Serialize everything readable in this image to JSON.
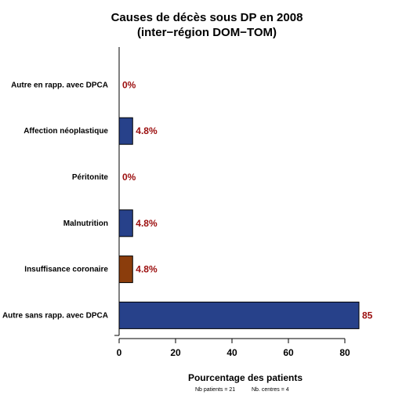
{
  "chart_data": {
    "type": "bar",
    "orientation": "horizontal",
    "title": "Causes de décès sous DP en 2008",
    "subtitle": "(inter−région DOM−TOM)",
    "xlabel": "Pourcentage des patients",
    "ylabel": "",
    "categories": [
      "Autre sans rapp. avec DPCA",
      "Insuffisance coronaire",
      "Malnutrition",
      "Péritonite",
      "Affection néoplastique",
      "Autre en rapp. avec DPCA"
    ],
    "values": [
      85,
      4.8,
      4.8,
      0,
      4.8,
      0
    ],
    "value_labels": [
      "85",
      "4.8%",
      "4.8%",
      "0%",
      "4.8%",
      "0%"
    ],
    "bar_colors": [
      "#27418a",
      "#8b3d0c",
      "#27418a",
      "#27418a",
      "#27418a",
      "#27418a"
    ],
    "label_color": "#9b0d0d",
    "xlim": [
      0,
      85
    ],
    "xticks": [
      0,
      20,
      40,
      60,
      80
    ],
    "grid": false,
    "footer": {
      "patients": "Nb patients =  21",
      "centres": "Nb. centres =  4"
    }
  }
}
